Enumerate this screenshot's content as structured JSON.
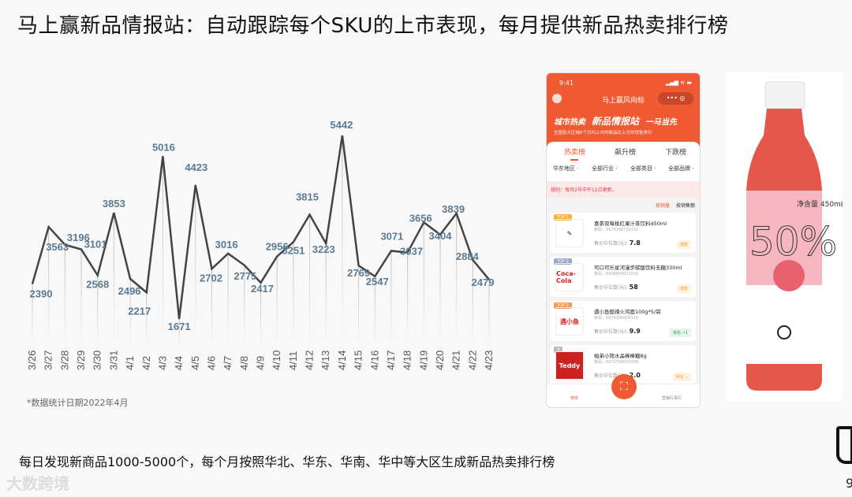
{
  "title": "马上赢新品情报站：自动跟踪每个SKU的上市表现，每月提供新品热卖排行榜",
  "chart_data": {
    "type": "line",
    "categories": [
      "3/26",
      "3/27",
      "3/28",
      "3/29",
      "3/30",
      "3/31",
      "4/1",
      "4/2",
      "4/3",
      "4/4",
      "4/5",
      "4/6",
      "4/7",
      "4/8",
      "4/9",
      "4/10",
      "4/11",
      "4/12",
      "4/13",
      "4/14",
      "4/15",
      "4/16",
      "4/17",
      "4/18",
      "4/19",
      "4/20",
      "4/21",
      "4/22",
      "4/23"
    ],
    "values": [
      2390,
      3563,
      3196,
      3101,
      2568,
      3853,
      2496,
      2217,
      5016,
      1671,
      4423,
      2702,
      3016,
      2775,
      2417,
      2956,
      3251,
      3815,
      3223,
      5442,
      2769,
      2547,
      3071,
      3037,
      3656,
      3404,
      3839,
      2884,
      2479
    ],
    "title": "",
    "xlabel": "",
    "ylabel": "",
    "grid": false,
    "line_color": "#444444",
    "label_color": "#5b7a92"
  },
  "note": "*数据统计日期2022年4月",
  "caption": "每日发现新商品1000-5000个，每个月按照华北、华东、华南、华中等大区生成新品热卖排行榜",
  "watermark": "大数跨境",
  "page_number": "9",
  "phone": {
    "time": "9:41",
    "status": "▂▄▆ ≋ ▬",
    "app_title": "马上赢风向标",
    "capsule": "••• ◎",
    "banner_left": "城市热卖",
    "banner_main": "新品情报站",
    "banner_right": "一马当先",
    "banner_sub": "全国各大区域6个月内上市的新品在上月的销售排行",
    "tabs": [
      "热卖榜",
      "飙升榜",
      "下跌榜"
    ],
    "filters": [
      "华东地区 ·",
      "全部行业 ·",
      "全部类目 ·",
      "全部品牌 ·"
    ],
    "rule": "规则：每月2号中午12点更新。",
    "sort": [
      "按销量",
      "按销售额"
    ],
    "items": [
      {
        "badge": "TOP 1",
        "name": "喜茶双莓桃红果汁茶饮料450ml",
        "code": "条码：6974348720132",
        "price_label": "售价中位数(元): ",
        "price": "7.8",
        "tag": "爆款",
        "logo": "✎"
      },
      {
        "badge": "TOP 2",
        "name": "可口可乐星河漫步碳酸饮料无糖330ml",
        "code": "条码：6928804021592",
        "price_label": "售价中位数(元): ",
        "price": "58",
        "tag": "爆款",
        "logo": "Coca-Cola"
      },
      {
        "badge": "TOP 3",
        "name": "遇小鱼酷辣火鸡面100g*5/袋",
        "code": "条码：6974286400110",
        "price_label": "售价中位数(元): ",
        "price": "9.9",
        "tag": "排名 ↗1",
        "logo": "遇小鱼"
      },
      {
        "badge": "4",
        "name": "帕弟小熊水晶棒棒糖8g",
        "code": "条码：6972598050306",
        "price_label": "售价中位数(元): ",
        "price": "2.0",
        "tag": "排名 --",
        "logo": "Teddy"
      }
    ],
    "nav": [
      "榜单",
      "营销行事历"
    ],
    "accent": "#ef5a32"
  },
  "bottle": {
    "brand_percent": "50%",
    "volume": "净含量 450mL"
  }
}
